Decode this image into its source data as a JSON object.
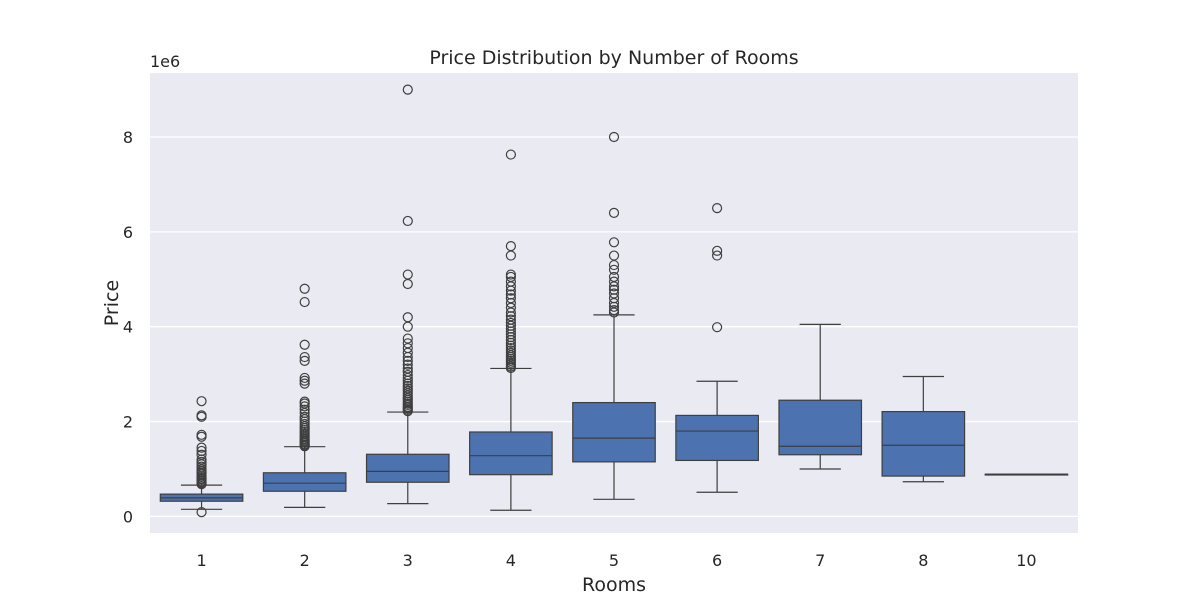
{
  "chart_data": {
    "type": "box",
    "title": "Price Distribution by Number of Rooms",
    "xlabel": "Rooms",
    "ylabel": "Price",
    "offset_label": "1e6",
    "ylim": [
      -0.35,
      9.35
    ],
    "yticks": [
      0,
      2,
      4,
      6,
      8
    ],
    "ytick_labels": [
      "0",
      "2",
      "4",
      "6",
      "8"
    ],
    "grid": true,
    "colors": {
      "background": "#eaeaf2",
      "box": "#4c72b0",
      "line": "#3f3f3f",
      "grid": "#ffffff"
    },
    "categories": [
      "1",
      "2",
      "3",
      "4",
      "5",
      "6",
      "7",
      "8",
      "10"
    ],
    "boxes": [
      {
        "category": "1",
        "whisker_low": 0.15,
        "q1": 0.32,
        "median": 0.39,
        "q3": 0.47,
        "whisker_high": 0.66,
        "outliers": [
          0.09,
          0.68,
          0.7,
          0.72,
          0.75,
          0.78,
          0.8,
          0.83,
          0.86,
          0.9,
          0.93,
          0.96,
          1.0,
          1.05,
          1.1,
          1.15,
          1.2,
          1.3,
          1.38,
          1.45,
          1.68,
          1.72,
          2.1,
          2.13,
          2.43
        ]
      },
      {
        "category": "2",
        "whisker_low": 0.19,
        "q1": 0.53,
        "median": 0.7,
        "q3": 0.92,
        "whisker_high": 1.47,
        "outliers": [
          1.48,
          1.5,
          1.52,
          1.55,
          1.58,
          1.6,
          1.63,
          1.66,
          1.7,
          1.74,
          1.78,
          1.82,
          1.86,
          1.9,
          1.95,
          2.0,
          2.05,
          2.1,
          2.18,
          2.25,
          2.32,
          2.38,
          2.42,
          2.8,
          2.86,
          2.92,
          3.28,
          3.36,
          3.62,
          4.52,
          4.8
        ]
      },
      {
        "category": "3",
        "whisker_low": 0.27,
        "q1": 0.72,
        "median": 0.95,
        "q3": 1.31,
        "whisker_high": 2.2,
        "outliers": [
          2.22,
          2.25,
          2.28,
          2.31,
          2.35,
          2.38,
          2.42,
          2.46,
          2.5,
          2.55,
          2.6,
          2.65,
          2.7,
          2.75,
          2.8,
          2.86,
          2.92,
          2.98,
          3.05,
          3.12,
          3.2,
          3.28,
          3.36,
          3.45,
          3.55,
          3.65,
          3.75,
          4.0,
          4.2,
          4.9,
          5.1,
          6.23,
          9.0
        ]
      },
      {
        "category": "4",
        "whisker_low": 0.13,
        "q1": 0.88,
        "median": 1.28,
        "q3": 1.78,
        "whisker_high": 3.12,
        "outliers": [
          3.13,
          3.16,
          3.2,
          3.24,
          3.28,
          3.32,
          3.36,
          3.4,
          3.45,
          3.5,
          3.55,
          3.6,
          3.66,
          3.72,
          3.78,
          3.84,
          3.9,
          3.96,
          4.02,
          4.08,
          4.15,
          4.22,
          4.3,
          4.4,
          4.5,
          4.6,
          4.68,
          4.76,
          4.85,
          4.95,
          5.05,
          5.1,
          5.5,
          5.7,
          7.63
        ]
      },
      {
        "category": "5",
        "whisker_low": 0.36,
        "q1": 1.15,
        "median": 1.65,
        "q3": 2.4,
        "whisker_high": 4.25,
        "outliers": [
          4.3,
          4.35,
          4.42,
          4.5,
          4.6,
          4.7,
          4.78,
          4.85,
          4.95,
          5.05,
          5.2,
          5.3,
          5.5,
          5.78,
          6.4,
          8.0
        ]
      },
      {
        "category": "6",
        "whisker_low": 0.51,
        "q1": 1.18,
        "median": 1.8,
        "q3": 2.13,
        "whisker_high": 2.85,
        "outliers": [
          3.99,
          5.5,
          5.6,
          6.5
        ]
      },
      {
        "category": "7",
        "whisker_low": 1.0,
        "q1": 1.3,
        "median": 1.48,
        "q3": 2.45,
        "whisker_high": 4.05,
        "outliers": []
      },
      {
        "category": "8",
        "whisker_low": 0.73,
        "q1": 0.85,
        "median": 1.5,
        "q3": 2.21,
        "whisker_high": 2.95,
        "outliers": []
      },
      {
        "category": "10",
        "whisker_low": 0.89,
        "q1": 0.89,
        "median": 0.89,
        "q3": 0.89,
        "whisker_high": 0.89,
        "outliers": []
      }
    ]
  }
}
